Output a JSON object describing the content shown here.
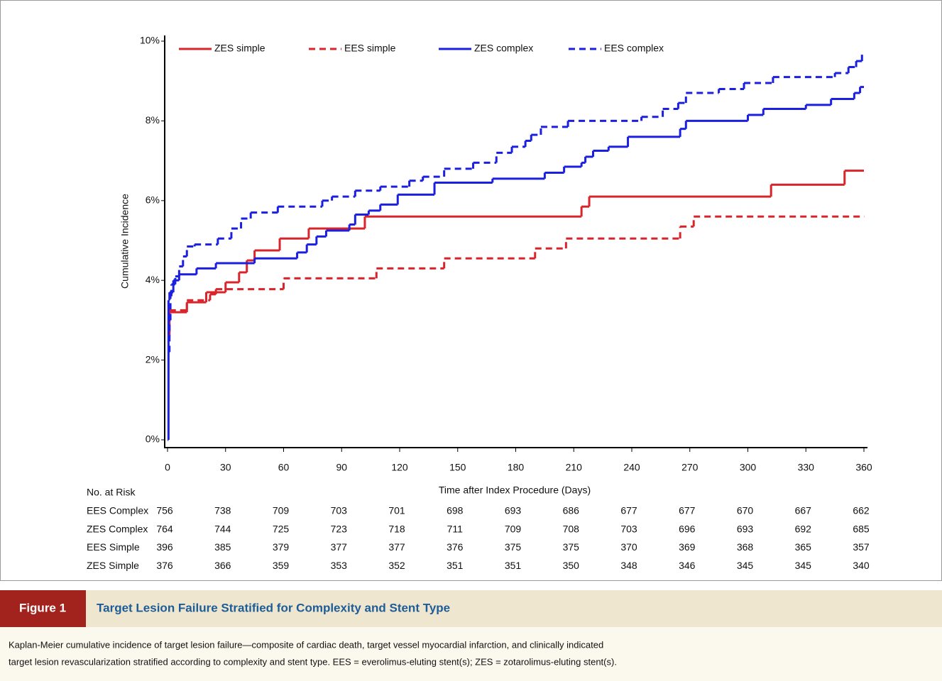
{
  "chart_data": {
    "type": "step",
    "y_label": "Cumulative Incidence",
    "x_label": "Time after Index Procedure (Days)",
    "xlim": [
      0,
      360
    ],
    "xticks": [
      0,
      30,
      60,
      90,
      120,
      150,
      180,
      210,
      240,
      270,
      300,
      330,
      360
    ],
    "ylim": [
      0,
      10
    ],
    "yticks": [
      {
        "value": 0,
        "label": "0%"
      },
      {
        "value": 2,
        "label": "2%"
      },
      {
        "value": 4,
        "label": "4%"
      },
      {
        "value": 6,
        "label": "6%"
      },
      {
        "value": 8,
        "label": "8%"
      },
      {
        "value": 10,
        "label": "10%"
      }
    ],
    "legend": "top",
    "series": [
      {
        "name": "ZES simple",
        "color": "#d8242a",
        "dashed": false,
        "x": [
          0,
          1,
          10,
          20,
          30,
          37,
          41,
          45,
          58,
          73,
          102,
          214,
          218,
          312,
          350,
          360
        ],
        "values": [
          2.6,
          3.2,
          3.45,
          3.7,
          3.95,
          4.2,
          4.5,
          4.75,
          5.05,
          5.3,
          5.6,
          5.85,
          6.1,
          6.4,
          6.75,
          6.75
        ]
      },
      {
        "name": "EES simple",
        "color": "#d8242a",
        "dashed": true,
        "x": [
          0,
          1,
          10,
          22,
          25,
          60,
          108,
          143,
          190,
          206,
          265,
          272,
          360
        ],
        "values": [
          2.7,
          3.25,
          3.5,
          3.65,
          3.78,
          4.05,
          4.3,
          4.55,
          4.8,
          5.05,
          5.35,
          5.6,
          5.6
        ]
      },
      {
        "name": "ZES complex",
        "color": "#1b1fe0",
        "dashed": false,
        "x": [
          0,
          0.5,
          1,
          3,
          6,
          15,
          25,
          45,
          67,
          72,
          77,
          82,
          94,
          97,
          104,
          110,
          119,
          138,
          168,
          195,
          205,
          214,
          216,
          220,
          228,
          238,
          265,
          268,
          300,
          308,
          330,
          343,
          355,
          358,
          360
        ],
        "values": [
          0,
          3.5,
          3.7,
          4.0,
          4.15,
          4.3,
          4.43,
          4.55,
          4.7,
          4.9,
          5.1,
          5.25,
          5.4,
          5.65,
          5.75,
          5.9,
          6.15,
          6.45,
          6.55,
          6.7,
          6.85,
          6.95,
          7.1,
          7.25,
          7.35,
          7.6,
          7.8,
          8.0,
          8.15,
          8.3,
          8.4,
          8.55,
          8.7,
          8.85,
          8.85
        ]
      },
      {
        "name": "EES complex",
        "color": "#1b1fe0",
        "dashed": true,
        "x": [
          0,
          1,
          1.5,
          2,
          4,
          6,
          8,
          10,
          14,
          26,
          33,
          38,
          43,
          57,
          80,
          85,
          97,
          110,
          125,
          132,
          143,
          158,
          170,
          178,
          185,
          188,
          193,
          207,
          245,
          256,
          264,
          268,
          285,
          298,
          313,
          345,
          352,
          356,
          359
        ],
        "values": [
          2.2,
          3.0,
          3.6,
          3.9,
          4.1,
          4.35,
          4.6,
          4.85,
          4.9,
          5.05,
          5.3,
          5.55,
          5.7,
          5.85,
          6.0,
          6.1,
          6.25,
          6.35,
          6.5,
          6.6,
          6.8,
          6.95,
          7.2,
          7.35,
          7.5,
          7.65,
          7.85,
          8.0,
          8.1,
          8.3,
          8.45,
          8.7,
          8.8,
          8.95,
          9.1,
          9.2,
          9.35,
          9.5,
          9.75
        ]
      }
    ]
  },
  "risk_table": {
    "title": "No. at Risk",
    "rows": [
      {
        "name": "EES Complex",
        "values": [
          756,
          738,
          709,
          703,
          701,
          698,
          693,
          686,
          677,
          677,
          670,
          667,
          662
        ]
      },
      {
        "name": "ZES Complex",
        "values": [
          764,
          744,
          725,
          723,
          718,
          711,
          709,
          708,
          703,
          696,
          693,
          692,
          685
        ]
      },
      {
        "name": "EES Simple",
        "values": [
          396,
          385,
          379,
          377,
          377,
          376,
          375,
          375,
          370,
          369,
          368,
          365,
          357
        ]
      },
      {
        "name": "ZES Simple",
        "values": [
          376,
          366,
          359,
          353,
          352,
          351,
          351,
          350,
          348,
          346,
          345,
          345,
          340
        ]
      }
    ]
  },
  "figure": {
    "label": "Figure 1",
    "title": "Target Lesion Failure Stratified for Complexity and Stent Type",
    "caption_lines": [
      "Kaplan-Meier cumulative incidence of target lesion failure—composite of cardiac death, target vessel myocardial infarction, and clinically indicated",
      "target lesion revascularization stratified according to complexity and stent type. EES = everolimus-eluting stent(s); ZES = zotarolimus-eluting stent(s)."
    ]
  }
}
